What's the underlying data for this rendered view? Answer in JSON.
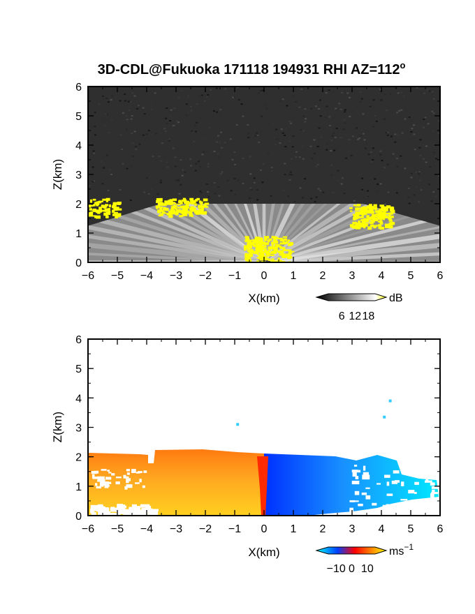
{
  "title": "3D-CDL@Fukuoka 171118 194931 RHI AZ=112",
  "title_superscript": "o",
  "chart_data": [
    {
      "type": "heatmap",
      "name": "snr-panel",
      "variable": "SNR",
      "xlabel": "X(km)",
      "ylabel": "Z(km)",
      "xlim": [
        -6,
        6
      ],
      "ylim": [
        0,
        6
      ],
      "x_ticks": [
        -6,
        -5,
        -4,
        -3,
        -2,
        -1,
        0,
        1,
        2,
        3,
        4,
        5,
        6
      ],
      "x_tick_labels": [
        "−6",
        "−5",
        "−4",
        "−3",
        "−2",
        "−1",
        "0",
        "1",
        "2",
        "3",
        "4",
        "5",
        "6"
      ],
      "y_ticks": [
        0,
        1,
        2,
        3,
        4,
        5,
        6
      ],
      "y_tick_labels": [
        "0",
        "1",
        "2",
        "3",
        "4",
        "5",
        "6"
      ],
      "colorbar": {
        "unit": "dB",
        "tick_values": [
          6,
          12,
          18
        ],
        "tick_labels": [
          "6",
          "12",
          "18"
        ],
        "range": [
          0,
          21
        ],
        "colors": [
          "#000000",
          "#ffffff",
          "#ffff00"
        ]
      },
      "features": {
        "background": "noise (dark grey speckle) above cloud base",
        "cloud_base_km": 2.0,
        "beam_fan_origin_km": [
          0,
          0
        ],
        "high_snr_patches_km": [
          {
            "x": [
              -6.0,
              -5.0
            ],
            "z": [
              1.6,
              2.2
            ]
          },
          {
            "x": [
              -3.7,
              -2.0
            ],
            "z": [
              1.6,
              2.2
            ]
          },
          {
            "x": [
              2.9,
              4.4
            ],
            "z": [
              1.2,
              2.0
            ]
          },
          {
            "x": [
              -0.7,
              0.9
            ],
            "z": [
              0.0,
              0.9
            ]
          }
        ]
      }
    },
    {
      "type": "heatmap",
      "name": "velocity-panel",
      "variable": "Doppler velocity",
      "xlabel": "X(km)",
      "ylabel": "Z(km)",
      "xlim": [
        -6,
        6
      ],
      "ylim": [
        0,
        6
      ],
      "x_ticks": [
        -6,
        -5,
        -4,
        -3,
        -2,
        -1,
        0,
        1,
        2,
        3,
        4,
        5,
        6
      ],
      "x_tick_labels": [
        "−6",
        "−5",
        "−4",
        "−3",
        "−2",
        "−1",
        "0",
        "1",
        "2",
        "3",
        "4",
        "5",
        "6"
      ],
      "y_ticks": [
        0,
        1,
        2,
        3,
        4,
        5,
        6
      ],
      "y_tick_labels": [
        "0",
        "1",
        "2",
        "3",
        "4",
        "5",
        "6"
      ],
      "colorbar": {
        "unit": "ms",
        "unit_superscript": "−1",
        "tick_values": [
          -10,
          0,
          10
        ],
        "tick_labels": [
          "−10",
          "0",
          "10"
        ],
        "range": [
          -15,
          15
        ],
        "colors": [
          "#00ffff",
          "#0040ff",
          "#ff0000",
          "#ffff00"
        ]
      },
      "features": {
        "negative_region_x_km": [
          0,
          6
        ],
        "positive_region_x_km": [
          -6,
          0
        ],
        "echo_top_km": 2.1,
        "isolated_points_km": [
          [
            -0.9,
            3.1
          ],
          [
            4.3,
            3.9
          ],
          [
            4.1,
            3.35
          ]
        ]
      }
    }
  ]
}
